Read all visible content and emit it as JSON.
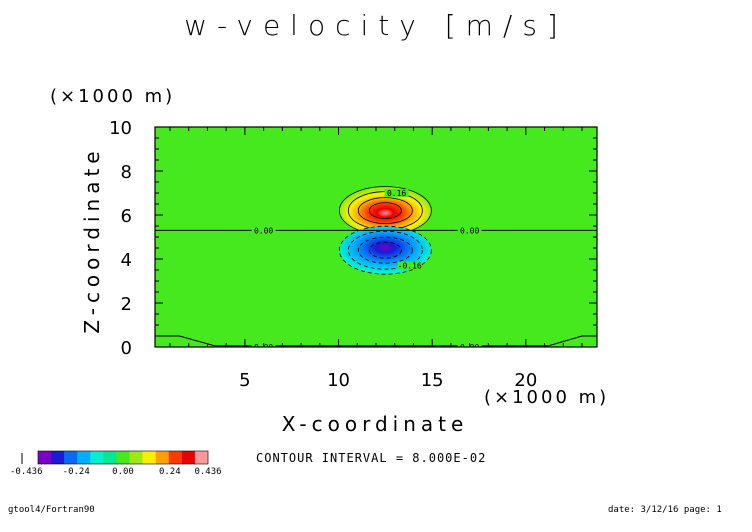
{
  "chart_data": {
    "type": "heatmap",
    "title": "w-velocity [m/s]",
    "xlabel": "X-coordinate",
    "ylabel": "Z-coordinate",
    "x_unit": "(×1000 m)",
    "y_unit": "(×1000 m)",
    "xlim": [
      0.2,
      23.8
    ],
    "ylim": [
      0,
      10
    ],
    "x_ticks": [
      "5",
      "10",
      "15",
      "20"
    ],
    "x_tick_values": [
      5,
      10,
      15,
      20
    ],
    "y_ticks": [
      "0",
      "2",
      "4",
      "6",
      "8",
      "10"
    ],
    "y_tick_values": [
      0,
      2,
      4,
      6,
      8,
      10
    ],
    "updraft": {
      "x_center": 12.5,
      "z_center": 6.2,
      "peak": 0.436
    },
    "downdraft": {
      "x_center": 12.5,
      "z_center": 4.4,
      "peak": -0.436
    },
    "zero_line_z": 5.3,
    "contour_interval": "CONTOUR INTERVAL = 8.000E-02",
    "contour_labels": [
      {
        "text": "0.16",
        "x": 13.1,
        "z": 7.0
      },
      {
        "text": "-0.16",
        "x": 13.8,
        "z": 3.7
      },
      {
        "text": "0.00",
        "x": 6.0,
        "z": 5.3
      },
      {
        "text": "0.00",
        "x": 17.0,
        "z": 5.3
      },
      {
        "text": "0.00",
        "x": 6.0,
        "z": 0.0
      },
      {
        "text": "0.00",
        "x": 17.0,
        "z": 0.0
      }
    ],
    "colorbar": {
      "colors": [
        "#7a00c8",
        "#1a1ad8",
        "#0a6af0",
        "#00b0ff",
        "#00f0d0",
        "#00e890",
        "#46e81e",
        "#a0e814",
        "#f8f000",
        "#ffa000",
        "#ff3a00",
        "#e80000",
        "#ff9898"
      ],
      "tick_labels": [
        "-0.24",
        "0.00",
        "0.24",
        "0.436"
      ],
      "tick_values": [
        -0.24,
        0.0,
        0.24,
        0.436
      ],
      "low_label": "-0.436",
      "min": -0.436,
      "max": 0.436
    }
  },
  "footer": {
    "left": "gtool4/Fortran90",
    "right": "date: 3/12/16 page: 1"
  }
}
